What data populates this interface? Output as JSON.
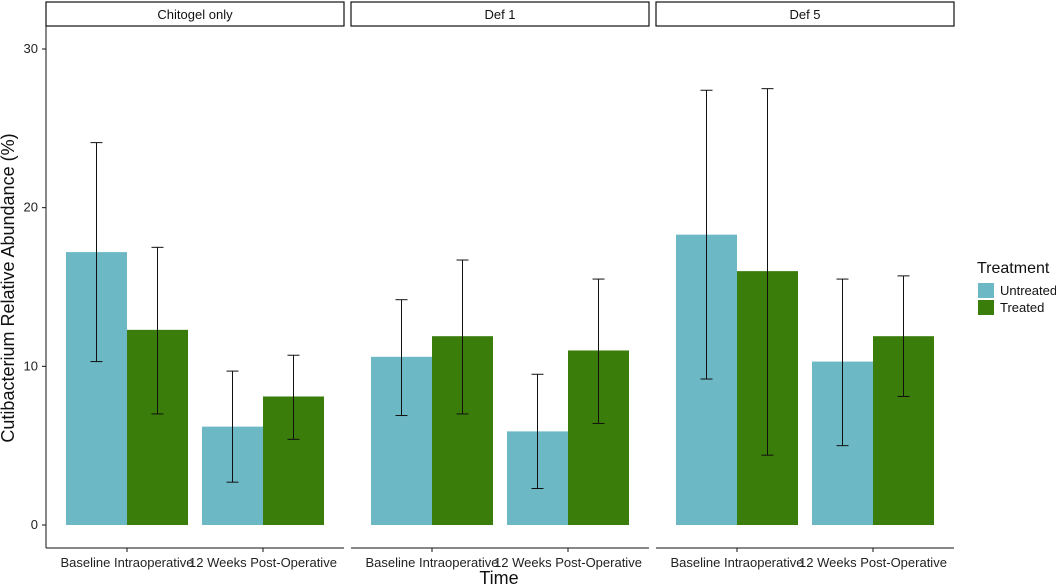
{
  "chart_data": {
    "type": "bar",
    "title": "",
    "xlabel": "Time",
    "ylabel": "Cutibacterium Relative Abundance (%)",
    "ylim": [
      0,
      30
    ],
    "yticks": [
      0,
      10,
      20,
      30
    ],
    "categories": [
      "Baseline Intraoperative",
      "12 Weeks Post-Operative"
    ],
    "legend": {
      "title": "Treatment",
      "position": "right",
      "entries": [
        {
          "name": "Untreated",
          "color": "#6cb9c5"
        },
        {
          "name": "Treated",
          "color": "#3a7d0a"
        }
      ]
    },
    "panels": [
      {
        "label": "Chitogel only",
        "series": [
          {
            "name": "Untreated",
            "values": [
              17.2,
              6.2
            ],
            "error_low": [
              10.3,
              2.7
            ],
            "error_high": [
              24.1,
              9.7
            ]
          },
          {
            "name": "Treated",
            "values": [
              12.3,
              8.1
            ],
            "error_low": [
              7.0,
              5.4
            ],
            "error_high": [
              17.5,
              10.7
            ]
          }
        ]
      },
      {
        "label": "Def 1",
        "series": [
          {
            "name": "Untreated",
            "values": [
              10.6,
              5.9
            ],
            "error_low": [
              6.9,
              2.3
            ],
            "error_high": [
              14.2,
              9.5
            ]
          },
          {
            "name": "Treated",
            "values": [
              11.9,
              11.0
            ],
            "error_low": [
              7.0,
              6.4
            ],
            "error_high": [
              16.7,
              15.5
            ]
          }
        ]
      },
      {
        "label": "Def 5",
        "series": [
          {
            "name": "Untreated",
            "values": [
              18.3,
              10.3
            ],
            "error_low": [
              9.2,
              5.0
            ],
            "error_high": [
              27.4,
              15.5
            ]
          },
          {
            "name": "Treated",
            "values": [
              16.0,
              11.9
            ],
            "error_low": [
              4.4,
              8.1
            ],
            "error_high": [
              27.5,
              15.7
            ]
          }
        ]
      }
    ]
  }
}
